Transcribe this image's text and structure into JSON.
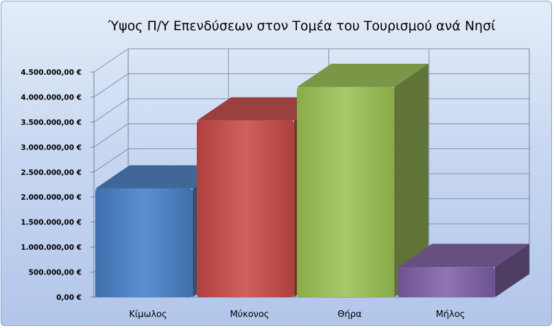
{
  "chart_data": {
    "type": "bar",
    "title": "Ύψος Π/Υ Επενδύσεων στον Τομέα του Τουρισμού ανά Νησί",
    "xlabel": "",
    "ylabel": "",
    "categories": [
      "Κίμωλος",
      "Μύκονος",
      "Θήρα",
      "Μήλος"
    ],
    "values": [
      2170000,
      3530000,
      4200000,
      600000
    ],
    "ylim": [
      0,
      4500000
    ],
    "y_ticks": [
      "0,00 €",
      "500.000,00 €",
      "1.000.000,00 €",
      "1.500.000,00 €",
      "2.000.000,00 €",
      "2.500.000,00 €",
      "3.000.000,00 €",
      "3.500.000,00 €",
      "4.000.000,00 €",
      "4.500.000,00 €"
    ],
    "bar_colors": [
      "#4f81bd",
      "#c0504d",
      "#9bbb59",
      "#8064a2"
    ],
    "grid": true,
    "legend": "none",
    "style": "3d-column"
  }
}
